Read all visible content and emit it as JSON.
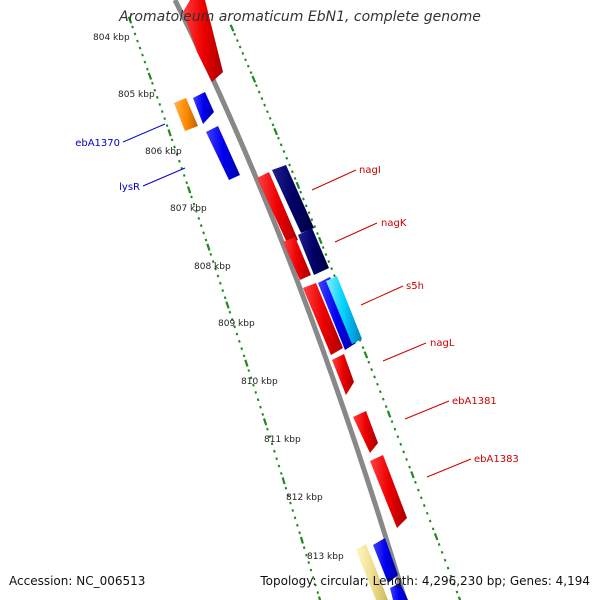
{
  "title": "Aromatoleum aromaticum EbN1, complete genome",
  "accession": "Accession: NC_006513",
  "topology": "Topology: circular; Length: 4,296,230 bp; Genes: 4,194",
  "colors": {
    "backbone": "#888888",
    "ticks": "#1f8a1f",
    "forward_gene": "#0000ee",
    "reverse_gene": "#ee0000",
    "rna": "#000066",
    "orange_gene": "#ff8c00",
    "cyan_gene": "#00d0ff",
    "pale_gene": "#f0e090"
  },
  "kbp_labels": [
    "804 kbp",
    "805 kbp",
    "806 kbp",
    "807 kbp",
    "808 kbp",
    "809 kbp",
    "810 kbp",
    "811 kbp",
    "812 kbp",
    "813 kbp"
  ],
  "gene_labels": [
    {
      "text": "nagI",
      "color": "#cc0000"
    },
    {
      "text": "nagK",
      "color": "#cc0000"
    },
    {
      "text": "s5h",
      "color": "#cc0000"
    },
    {
      "text": "nagL",
      "color": "#cc0000"
    },
    {
      "text": "ebA1381",
      "color": "#cc0000"
    },
    {
      "text": "ebA1383",
      "color": "#cc0000"
    },
    {
      "text": "ebA1370",
      "color": "#0000cc"
    },
    {
      "text": "lysR",
      "color": "#0000cc"
    }
  ]
}
